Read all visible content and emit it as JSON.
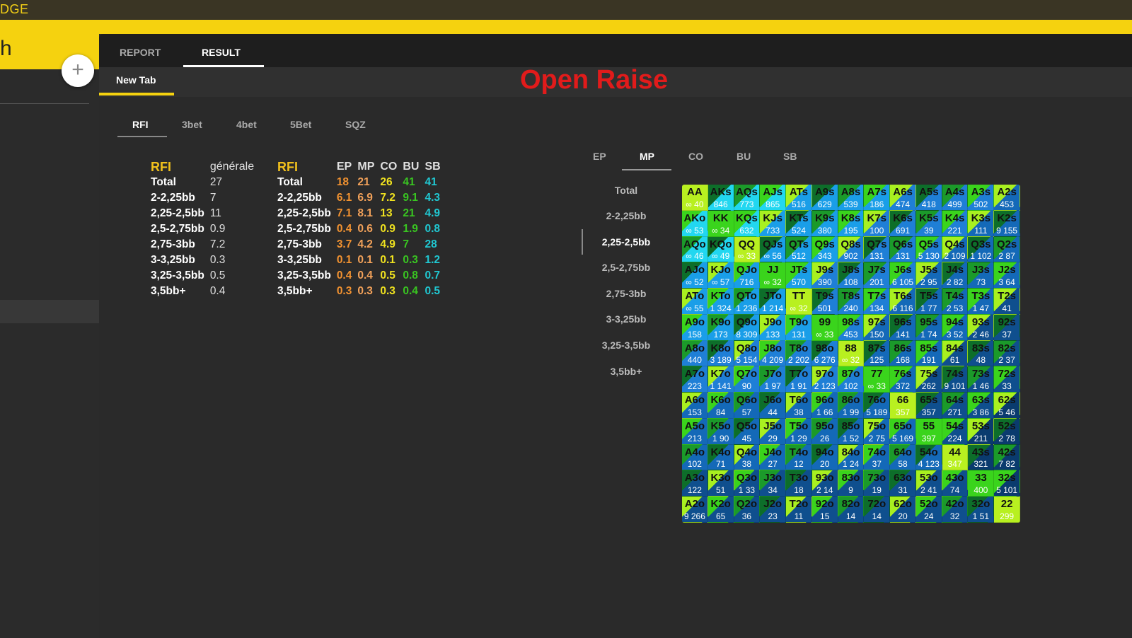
{
  "app": {
    "brand": "DGE",
    "sidebar_title": "h",
    "plus_label": "+"
  },
  "colors": {
    "accent": "#f5d20f",
    "title_red": "#e11b1b"
  },
  "top_tabs": [
    {
      "label": "REPORT"
    },
    {
      "label": "RESULT"
    }
  ],
  "tab": {
    "label": "New Tab"
  },
  "report_title": "Open Raise",
  "sub_tabs": [
    {
      "label": "RFI"
    },
    {
      "label": "3bet"
    },
    {
      "label": "4bet"
    },
    {
      "label": "5Bet"
    },
    {
      "label": "SQZ"
    }
  ],
  "general_table": {
    "header_a": "RFI",
    "header_b": "générale",
    "rows": [
      {
        "label": "Total",
        "value": "27"
      },
      {
        "label": "2-2,25bb",
        "value": "7"
      },
      {
        "label": "2,25-2,5bb",
        "value": "11"
      },
      {
        "label": "2,5-2,75bb",
        "value": "0.9"
      },
      {
        "label": "2,75-3bb",
        "value": "7.2"
      },
      {
        "label": "3-3,25bb",
        "value": "0.3"
      },
      {
        "label": "3,25-3,5bb",
        "value": "0.5"
      },
      {
        "label": "3,5bb+",
        "value": "0.4"
      }
    ]
  },
  "position_table": {
    "header": "RFI",
    "cols": [
      "EP",
      "MP",
      "CO",
      "BU",
      "SB"
    ],
    "rows": [
      {
        "label": "Total",
        "v": [
          "18",
          "21",
          "26",
          "41",
          "41"
        ]
      },
      {
        "label": "2-2,25bb",
        "v": [
          "6.1",
          "6.9",
          "7.2",
          "9.1",
          "4.3"
        ]
      },
      {
        "label": "2,25-2,5bb",
        "v": [
          "7.1",
          "8.1",
          "13",
          "21",
          "4.9"
        ]
      },
      {
        "label": "2,5-2,75bb",
        "v": [
          "0.4",
          "0.6",
          "0.9",
          "1.9",
          "0.8"
        ]
      },
      {
        "label": "2,75-3bb",
        "v": [
          "3.7",
          "4.2",
          "4.9",
          "7",
          "28"
        ]
      },
      {
        "label": "3-3,25bb",
        "v": [
          "0.1",
          "0.1",
          "0.1",
          "0.3",
          "1.2"
        ]
      },
      {
        "label": "3,25-3,5bb",
        "v": [
          "0.4",
          "0.4",
          "0.5",
          "0.8",
          "0.7"
        ]
      },
      {
        "label": "3,5bb+",
        "v": [
          "0.3",
          "0.3",
          "0.3",
          "0.4",
          "0.5"
        ]
      }
    ]
  },
  "pos_tabs": [
    {
      "label": "EP"
    },
    {
      "label": "MP"
    },
    {
      "label": "CO"
    },
    {
      "label": "BU"
    },
    {
      "label": "SB"
    }
  ],
  "stack_list": [
    {
      "label": "Total"
    },
    {
      "label": "2-2,25bb"
    },
    {
      "label": "2,25-2,5bb"
    },
    {
      "label": "2,5-2,75bb"
    },
    {
      "label": "2,75-3bb"
    },
    {
      "label": "3-3,25bb"
    },
    {
      "label": "3,25-3,5bb"
    },
    {
      "label": "3,5bb+"
    }
  ],
  "hand_grid": {
    "rows": [
      {
        "hands": [
          "AA",
          "AKs",
          "AQs",
          "AJs",
          "ATs",
          "A9s",
          "A8s",
          "A7s",
          "A6s",
          "A5s",
          "A4s",
          "A3s",
          "A2s"
        ],
        "counts": [
          "∞ 40",
          "846",
          "773",
          "865",
          "516",
          "629",
          "539",
          "186",
          "474",
          "418",
          "499",
          "502",
          "453"
        ]
      },
      {
        "hands": [
          "AKo",
          "KK",
          "KQs",
          "KJs",
          "KTs",
          "K9s",
          "K8s",
          "K7s",
          "K6s",
          "K5s",
          "K4s",
          "K3s",
          "K2s"
        ],
        "counts": [
          "∞ 53",
          "∞ 34",
          "632",
          "733",
          "524",
          "380",
          "195",
          "100",
          "691",
          "39",
          "221",
          "111",
          "9 155"
        ]
      },
      {
        "hands": [
          "AQo",
          "KQo",
          "QQ",
          "QJs",
          "QTs",
          "Q9s",
          "Q8s",
          "Q7s",
          "Q6s",
          "Q5s",
          "Q4s",
          "Q3s",
          "Q2s"
        ],
        "counts": [
          "∞ 46",
          "∞ 49",
          "∞ 33",
          "∞ 56",
          "512",
          "343",
          "902",
          "131",
          "131",
          "5 130",
          "2 109",
          "1 102",
          "2 87"
        ]
      },
      {
        "hands": [
          "AJo",
          "KJo",
          "QJo",
          "JJ",
          "JTs",
          "J9s",
          "J8s",
          "J7s",
          "J6s",
          "J5s",
          "J4s",
          "J3s",
          "J2s"
        ],
        "counts": [
          "∞ 52",
          "∞ 57",
          "716",
          "∞ 32",
          "570",
          "390",
          "108",
          "201",
          "6 105",
          "2 95",
          "2 82",
          "73",
          "3 64"
        ]
      },
      {
        "hands": [
          "ATo",
          "KTo",
          "QTo",
          "JTo",
          "TT",
          "T9s",
          "T8s",
          "T7s",
          "T6s",
          "T5s",
          "T4s",
          "T3s",
          "T2s"
        ],
        "counts": [
          "∞ 55",
          "1 324",
          "1 236",
          "1 214",
          "∞ 32",
          "501",
          "240",
          "134",
          "6 116",
          "1 77",
          "2 53",
          "1 47",
          "41"
        ]
      },
      {
        "hands": [
          "A9o",
          "K9o",
          "Q9o",
          "J9o",
          "T9o",
          "99",
          "98s",
          "97s",
          "96s",
          "95s",
          "94s",
          "93s",
          "92s"
        ],
        "counts": [
          "158",
          "173",
          "8 309",
          "133",
          "131",
          "∞ 33",
          "453",
          "150",
          "141",
          "1 74",
          "3 52",
          "2 46",
          "37"
        ]
      },
      {
        "hands": [
          "A8o",
          "K8o",
          "Q8o",
          "J8o",
          "T8o",
          "98o",
          "88",
          "87s",
          "86s",
          "85s",
          "84s",
          "83s",
          "82s"
        ],
        "counts": [
          "440",
          "3 189",
          "5 154",
          "4 209",
          "2 202",
          "6 276",
          "∞ 32",
          "125",
          "168",
          "191",
          "61",
          "48",
          "2 37"
        ]
      },
      {
        "hands": [
          "A7o",
          "K7o",
          "Q7o",
          "J7o",
          "T7o",
          "97o",
          "87o",
          "77",
          "76s",
          "75s",
          "74s",
          "73s",
          "72s"
        ],
        "counts": [
          "223",
          "1 141",
          "90",
          "1 97",
          "1 91",
          "2 123",
          "102",
          "∞ 33",
          "372",
          "262",
          "9 101",
          "1 46",
          "33"
        ]
      },
      {
        "hands": [
          "A6o",
          "K6o",
          "Q6o",
          "J6o",
          "T6o",
          "96o",
          "86o",
          "76o",
          "66",
          "65s",
          "64s",
          "63s",
          "62s"
        ],
        "counts": [
          "153",
          "84",
          "57",
          "44",
          "38",
          "1 66",
          "1 99",
          "5 189",
          "357",
          "357",
          "271",
          "3 86",
          "5 46"
        ]
      },
      {
        "hands": [
          "A5o",
          "K5o",
          "Q5o",
          "J5o",
          "T5o",
          "95o",
          "85o",
          "75o",
          "65o",
          "55",
          "54s",
          "53s",
          "52s"
        ],
        "counts": [
          "213",
          "1 90",
          "45",
          "29",
          "1 29",
          "26",
          "1 52",
          "2 75",
          "5 169",
          "397",
          "224",
          "211",
          "2 78"
        ]
      },
      {
        "hands": [
          "A4o",
          "K4o",
          "Q4o",
          "J4o",
          "T4o",
          "94o",
          "84o",
          "74o",
          "64o",
          "54o",
          "44",
          "43s",
          "42s"
        ],
        "counts": [
          "102",
          "71",
          "38",
          "27",
          "12",
          "20",
          "1 24",
          "37",
          "58",
          "4 123",
          "347",
          "321",
          "7 82"
        ]
      },
      {
        "hands": [
          "A3o",
          "K3o",
          "Q3o",
          "J3o",
          "T3o",
          "93o",
          "83o",
          "73o",
          "63o",
          "53o",
          "43o",
          "33",
          "32s"
        ],
        "counts": [
          "122",
          "51",
          "1 33",
          "34",
          "18",
          "2 14",
          "9",
          "19",
          "31",
          "2 41",
          "74",
          "400",
          "5 101"
        ]
      },
      {
        "hands": [
          "A2o",
          "K2o",
          "Q2o",
          "J2o",
          "T2o",
          "92o",
          "82o",
          "72o",
          "62o",
          "52o",
          "42o",
          "32o",
          "22"
        ],
        "counts": [
          "9 266",
          "65",
          "36",
          "23",
          "11",
          "15",
          "14",
          "14",
          "20",
          "24",
          "32",
          "1 51",
          "299"
        ]
      }
    ]
  }
}
